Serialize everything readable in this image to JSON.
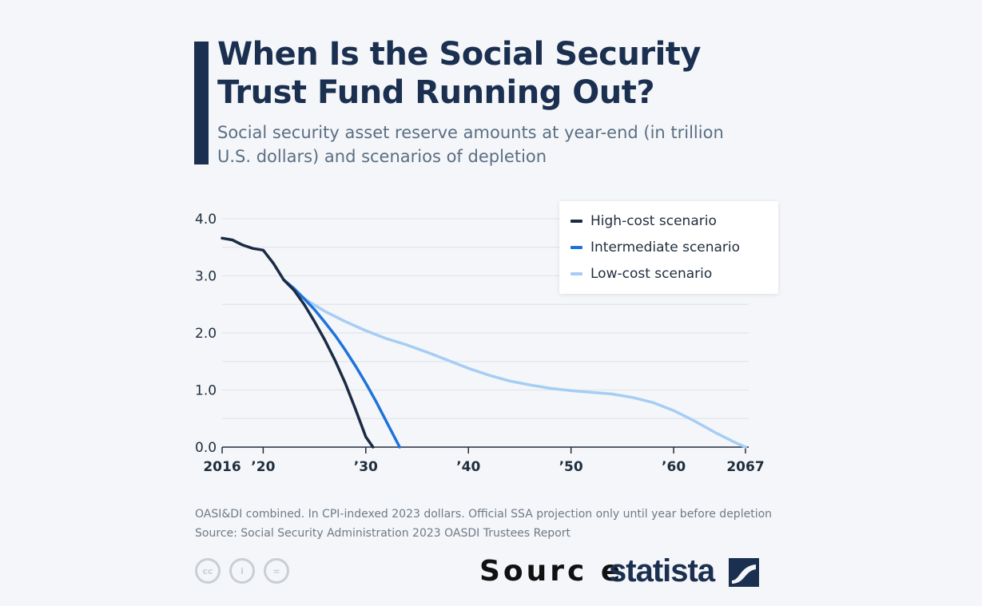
{
  "title": "When Is the Social Security Trust Fund Running Out?",
  "subtitle": "Social security asset reserve amounts at year-end (in trillion U.S. dollars) and scenarios of depletion",
  "legend": {
    "items": [
      {
        "label": "High-cost scenario",
        "color": "#1b2b45"
      },
      {
        "label": "Intermediate scenario",
        "color": "#1d73db"
      },
      {
        "label": "Low-cost scenario",
        "color": "#a6cdf5"
      }
    ],
    "placement": "top-right"
  },
  "notes": {
    "line1": "OASI&DI combined. In CPI-indexed 2023 dollars. Official SSA projection only until year before depletion",
    "line2": "Source: Social Security Administration 2023 OASDI Trustees Report"
  },
  "footer": {
    "cc_icons": [
      "cc-icon",
      "attribution-icon",
      "no-derivatives-icon"
    ],
    "cc_texts": [
      "cc",
      "i",
      "="
    ],
    "source_word": "Sourc e",
    "brand": "statista"
  },
  "chart_data": {
    "type": "line",
    "xlim": [
      2016,
      2067
    ],
    "ylim": [
      0,
      4
    ],
    "yticks": [
      0,
      1,
      2,
      3,
      4
    ],
    "ytick_labels": [
      "0.0",
      "1.0",
      "2.0",
      "3.0",
      "4.0"
    ],
    "xticks": [
      2016,
      2020,
      2030,
      2040,
      2050,
      2060,
      2067
    ],
    "xtick_labels": [
      "2016",
      "’20",
      "’30",
      "’40",
      "’50",
      "’60",
      "2067"
    ],
    "grid": true,
    "series": [
      {
        "name": "High-cost scenario",
        "color": "#1b2b45",
        "x": [
          2016,
          2017,
          2018,
          2019,
          2020,
          2021,
          2022,
          2023,
          2024,
          2025,
          2026,
          2027,
          2028,
          2029,
          2030,
          2030.7
        ],
        "y": [
          3.66,
          3.63,
          3.54,
          3.48,
          3.45,
          3.22,
          2.93,
          2.75,
          2.5,
          2.2,
          1.88,
          1.52,
          1.12,
          0.66,
          0.18,
          0.0
        ]
      },
      {
        "name": "Intermediate scenario",
        "color": "#1d73db",
        "x": [
          2022,
          2023,
          2024,
          2025,
          2026,
          2027,
          2028,
          2029,
          2030,
          2031,
          2032,
          2033.3
        ],
        "y": [
          2.93,
          2.78,
          2.6,
          2.41,
          2.19,
          1.96,
          1.7,
          1.42,
          1.12,
          0.8,
          0.45,
          0.0
        ]
      },
      {
        "name": "Low-cost scenario",
        "color": "#a6cdf5",
        "x": [
          2022,
          2024,
          2026,
          2028,
          2030,
          2032,
          2034,
          2036,
          2038,
          2040,
          2042,
          2044,
          2046,
          2048,
          2050,
          2052,
          2054,
          2056,
          2058,
          2060,
          2062,
          2064,
          2066,
          2067
        ],
        "y": [
          2.93,
          2.6,
          2.38,
          2.2,
          2.04,
          1.9,
          1.79,
          1.66,
          1.52,
          1.38,
          1.26,
          1.16,
          1.09,
          1.03,
          0.99,
          0.96,
          0.93,
          0.87,
          0.78,
          0.64,
          0.46,
          0.26,
          0.08,
          0.0
        ]
      }
    ]
  }
}
